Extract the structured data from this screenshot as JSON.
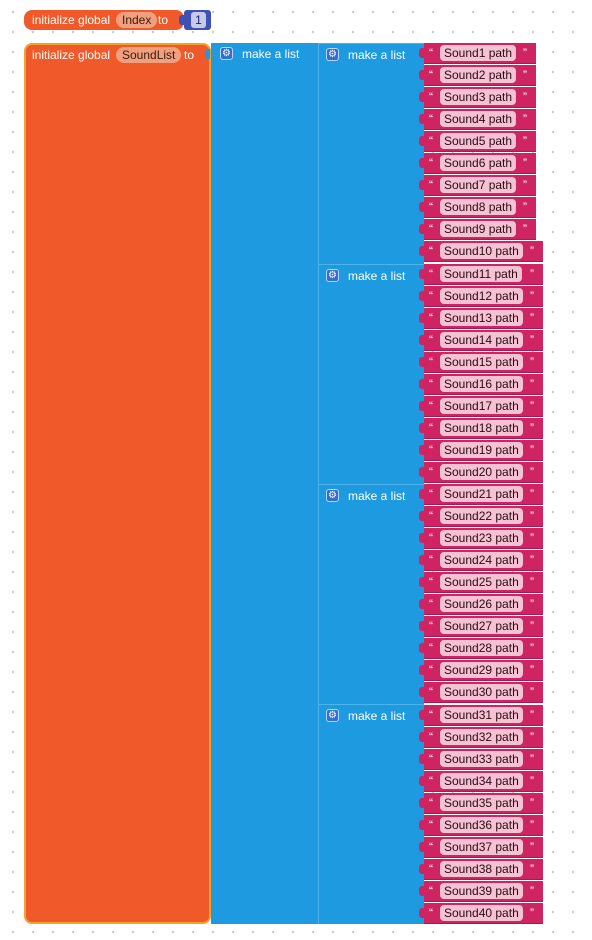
{
  "blocks": {
    "index_init": {
      "prefix": "initialize global",
      "var_name": "Index",
      "suffix": "to",
      "value": "1"
    },
    "soundlist_init": {
      "prefix": "initialize global",
      "var_name": "SoundList",
      "suffix": "to"
    },
    "make_list_label": "make a list",
    "gear_glyph": "⚙",
    "open_quote": "“",
    "close_quote": "”",
    "strings": [
      "Sound1 path",
      "Sound2 path",
      "Sound3 path",
      "Sound4 path",
      "Sound5 path",
      "Sound6 path",
      "Sound7 path",
      "Sound8 path",
      "Sound9 path",
      "Sound10 path",
      "Sound11 path",
      "Sound12 path",
      "Sound13 path",
      "Sound14 path",
      "Sound15 path",
      "Sound16 path",
      "Sound17 path",
      "Sound18 path",
      "Sound19 path",
      "Sound20 path",
      "Sound21 path",
      "Sound22 path",
      "Sound23 path",
      "Sound24 path",
      "Sound25 path",
      "Sound26 path",
      "Sound27 path",
      "Sound28 path",
      "Sound29 path",
      "Sound30 path",
      "Sound31 path",
      "Sound32 path",
      "Sound33 path",
      "Sound34 path",
      "Sound35 path",
      "Sound36 path",
      "Sound37 path",
      "Sound38 path",
      "Sound39 path",
      "Sound40 path"
    ]
  },
  "colors": {
    "variables": "#f05a2a",
    "variables_border": "#f4a12a",
    "lists": "#1e9be0",
    "math": "#3f51b5",
    "text": "#cf2462"
  }
}
